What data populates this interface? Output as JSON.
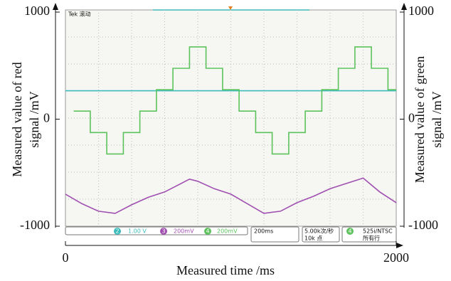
{
  "chart_data": {
    "type": "line",
    "xlabel": "Measured time /ms",
    "ylabel": [
      "Measured value of red",
      "signal /mV"
    ],
    "y2label": [
      "Measured value of green",
      "signal /mV"
    ],
    "xlim": [
      0,
      2000
    ],
    "xticks": [
      0,
      2000
    ],
    "ylim": [
      -1000,
      1000
    ],
    "yticks": [
      -1000,
      0,
      1000
    ],
    "y2lim": [
      -1000,
      1000
    ],
    "y2ticks": [
      -1000,
      0,
      1000
    ],
    "grid": true,
    "series": [
      {
        "color": "#3cbcbc",
        "x": [
          0,
          2000
        ],
        "values": [
          265,
          265
        ]
      },
      {
        "color": "#5cc35c",
        "axis": "y2",
        "x": [
          50,
          150,
          150,
          250,
          250,
          350,
          350,
          450,
          450,
          550,
          550,
          650,
          650,
          750,
          750,
          850,
          850,
          950,
          950,
          1050,
          1050,
          1150,
          1150,
          1250,
          1250,
          1350,
          1350,
          1450,
          1450,
          1550,
          1550,
          1650,
          1650,
          1750,
          1750,
          1850,
          1850,
          1950,
          1950,
          2000
        ],
        "values": [
          75,
          75,
          -125,
          -125,
          -325,
          -325,
          -125,
          -125,
          75,
          75,
          275,
          275,
          475,
          475,
          675,
          675,
          475,
          475,
          275,
          275,
          75,
          75,
          -125,
          -125,
          -325,
          -325,
          -125,
          -125,
          75,
          75,
          275,
          275,
          475,
          475,
          675,
          675,
          475,
          475,
          275,
          275
        ]
      },
      {
        "color": "#a050b0",
        "x": [
          0,
          100,
          200,
          300,
          400,
          500,
          600,
          700,
          750,
          800,
          900,
          1000,
          1100,
          1200,
          1300,
          1400,
          1500,
          1600,
          1700,
          1800,
          1900,
          2000
        ],
        "values": [
          -700,
          -790,
          -860,
          -880,
          -800,
          -730,
          -680,
          -600,
          -560,
          -580,
          -650,
          -700,
          -790,
          -880,
          -860,
          -780,
          -720,
          -650,
          -600,
          -550,
          -680,
          -780
        ]
      }
    ],
    "scope_text": {
      "top": "Tek 滚动",
      "ch2_badge": "2",
      "ch2": "1.00 V",
      "ch3_badge": "3",
      "ch3": "200mV",
      "ch4_badge": "4",
      "ch4": "200mV",
      "timebase": "200ms",
      "rate": "5.00k次/秒",
      "points": "10k 点",
      "trig_badge": "4",
      "trigger": "525i/NTSC",
      "lines": "所有行"
    }
  }
}
